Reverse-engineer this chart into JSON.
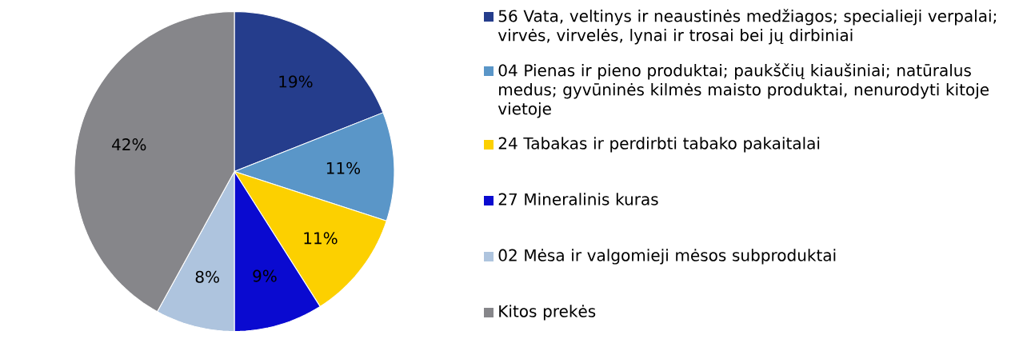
{
  "chart_data": {
    "type": "pie",
    "legend": "right",
    "categories": [
      "56 Vata, veltinys ir neaustinės medžiagos; specialieji verpalai; virvės, virvelės, lynai ir trosai bei jų dirbiniai",
      "04 Pienas ir pieno produktai; paukščių kiaušiniai; natūralus medus; gyvūninės kilmės maisto produktai, nenurodyti kitoje vietoje",
      "24 Tabakas ir perdirbti tabako pakaitalai",
      "27 Mineralinis kuras",
      "02 Mėsa ir valgomieji mėsos subproduktai",
      "Kitos prekės"
    ],
    "values": [
      19,
      11,
      11,
      9,
      8,
      42
    ],
    "value_labels": [
      "19%",
      "11%",
      "11%",
      "9%",
      "8%",
      "42%"
    ],
    "colors": [
      "#253d8c",
      "#5a96c8",
      "#fcd000",
      "#0a0ad0",
      "#aec4de",
      "#86868a"
    ]
  }
}
